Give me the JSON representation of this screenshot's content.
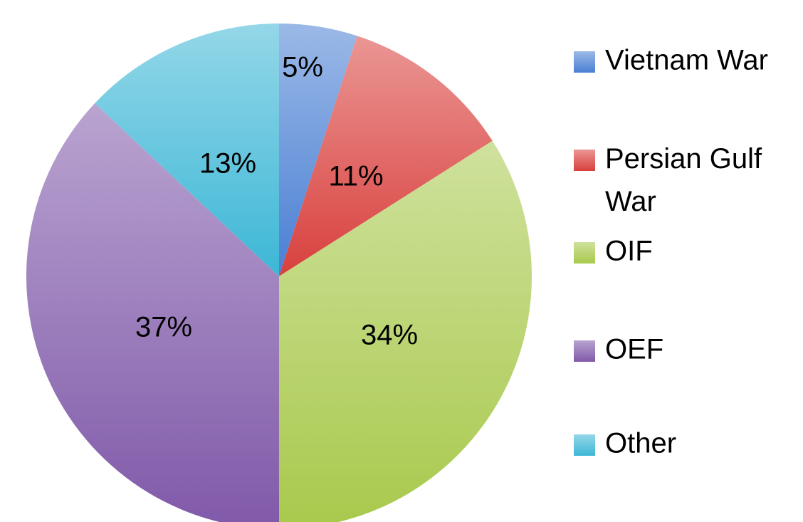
{
  "chart_data": {
    "type": "pie",
    "categories": [
      "Vietnam War",
      "Persian Gulf War",
      "OIF",
      "OEF",
      "Other"
    ],
    "values": [
      5,
      11,
      34,
      37,
      13
    ],
    "value_labels": [
      "5%",
      "11%",
      "34%",
      "37%",
      "13%"
    ],
    "colors": [
      "#4a7fd4",
      "#d8403d",
      "#a8c94c",
      "#8059a9",
      "#3cb7d6"
    ],
    "legend": "right"
  }
}
